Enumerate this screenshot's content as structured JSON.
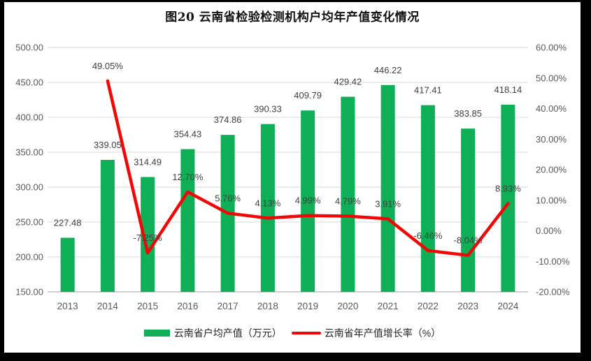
{
  "chart_data": {
    "type": "bar",
    "combo_note": "bar series on left axis + line series on right axis",
    "title": "图20  云南省检验检测机构户均年产值变化情况",
    "categories": [
      "2013",
      "2014",
      "2015",
      "2016",
      "2017",
      "2018",
      "2019",
      "2020",
      "2021",
      "2022",
      "2023",
      "2024"
    ],
    "series": [
      {
        "name": "云南省户均产值（万元）",
        "type": "bar",
        "axis": "left",
        "color": "#0FAF58",
        "values": [
          227.48,
          339.05,
          314.49,
          354.43,
          374.86,
          390.33,
          409.79,
          429.42,
          446.22,
          417.41,
          383.85,
          418.14
        ],
        "labels": [
          "227.48",
          "339.05",
          "314.49",
          "354.43",
          "374.86",
          "390.33",
          "409.79",
          "429.42",
          "446.22",
          "417.41",
          "383.85",
          "418.14"
        ]
      },
      {
        "name": "云南省年产值增长率（%）",
        "type": "line",
        "axis": "right",
        "color": "#F40606",
        "values": [
          null,
          49.05,
          -7.25,
          12.7,
          5.76,
          4.13,
          4.99,
          4.79,
          3.91,
          -6.46,
          -8.04,
          8.93
        ],
        "labels": [
          null,
          "49.05%",
          "-7.25%",
          "12.70%",
          "5.76%",
          "4.13%",
          "4.99%",
          "4.79%",
          "3.91%",
          "-6.46%",
          "-8.04%",
          "8.93%"
        ]
      }
    ],
    "left_axis": {
      "min": 150,
      "max": 500,
      "step": 50,
      "tick_labels": [
        "500.00",
        "450.00",
        "400.00",
        "350.00",
        "300.00",
        "250.00",
        "200.00",
        "150.00"
      ]
    },
    "right_axis": {
      "min": -20,
      "max": 60,
      "step": 10,
      "tick_labels": [
        "60.00%",
        "50.00%",
        "40.00%",
        "30.00%",
        "20.00%",
        "10.00%",
        "0.00%",
        "-10.00%",
        "-20.00%"
      ]
    },
    "grid": true,
    "legend_position": "bottom",
    "colors": {
      "grid_line": "#D9D9D9",
      "axis_line": "#BFBFBF",
      "tick_text": "#595959",
      "data_label_text": "#404040",
      "frame": "#000000"
    }
  }
}
